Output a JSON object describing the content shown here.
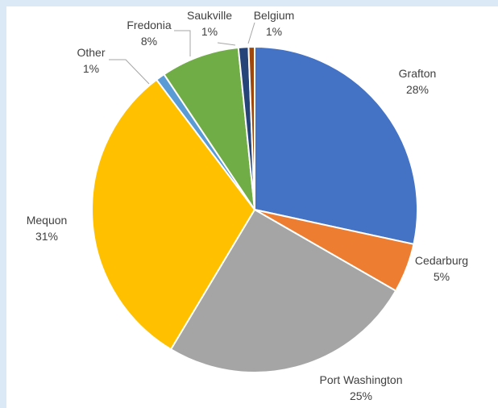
{
  "chart_data": {
    "type": "pie",
    "title": "",
    "start_angle_deg": 0,
    "direction": "clockwise",
    "legend": "none",
    "slices": [
      {
        "name": "Grafton",
        "label": "28%",
        "value": 28.4,
        "color": "#4472c4"
      },
      {
        "name": "Cedarburg",
        "label": "5%",
        "value": 4.9,
        "color": "#ed7d31"
      },
      {
        "name": "Port Washington",
        "label": "25%",
        "value": 25.3,
        "color": "#a5a5a5"
      },
      {
        "name": "Mequon",
        "label": "31%",
        "value": 31.1,
        "color": "#ffc000"
      },
      {
        "name": "Other",
        "label": "1%",
        "value": 0.9,
        "color": "#5b9bd5"
      },
      {
        "name": "Fredonia",
        "label": "8%",
        "value": 7.8,
        "color": "#70ad47"
      },
      {
        "name": "Saukville",
        "label": "1%",
        "value": 1.0,
        "color": "#264478"
      },
      {
        "name": "Belgium",
        "label": "1%",
        "value": 0.6,
        "color": "#9e480e"
      }
    ]
  }
}
